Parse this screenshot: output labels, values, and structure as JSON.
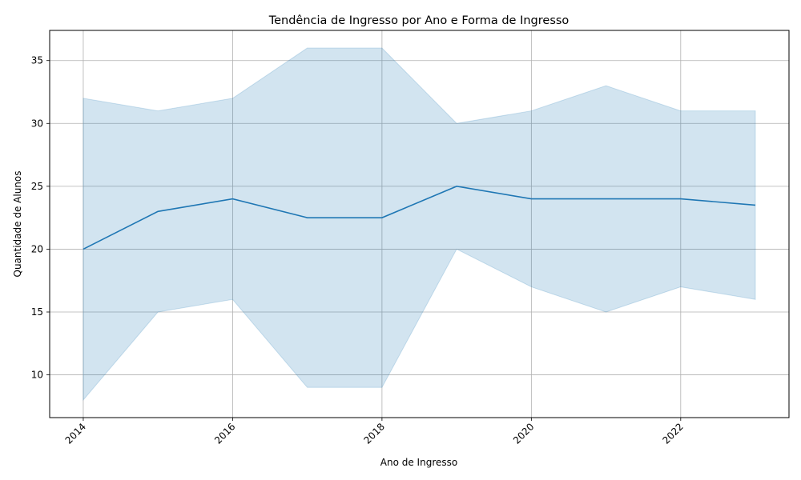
{
  "chart_data": {
    "type": "line",
    "title": "Tendência de Ingresso por Ano e Forma de Ingresso",
    "xlabel": "Ano de Ingresso",
    "ylabel": "Quantidade de Alunos",
    "x": [
      2014,
      2015,
      2016,
      2017,
      2018,
      2019,
      2020,
      2021,
      2022,
      2023
    ],
    "series": [
      {
        "values": [
          20,
          23,
          24,
          22.5,
          22.5,
          25,
          24,
          24,
          24,
          23.5
        ],
        "band_upper": [
          32,
          31,
          32,
          36,
          36,
          30,
          31,
          33,
          31,
          31
        ],
        "band_lower": [
          8,
          15,
          16,
          9,
          9,
          20,
          17,
          15,
          17,
          16
        ],
        "color": "#1f77b4"
      }
    ],
    "xticks": [
      "2014",
      "2016",
      "2018",
      "2020",
      "2022"
    ],
    "xtick_values": [
      2014,
      2016,
      2018,
      2020,
      2022
    ],
    "yticks": [
      "10",
      "15",
      "20",
      "25",
      "30",
      "35"
    ],
    "ytick_values": [
      10,
      15,
      20,
      25,
      30,
      35
    ],
    "xlim": [
      2013.55,
      2023.45
    ],
    "ylim": [
      6.6,
      37.4
    ],
    "grid": true,
    "colors": {
      "band": "#1f77b4",
      "grid": "#b0b0b0",
      "axes": "#000000"
    }
  }
}
